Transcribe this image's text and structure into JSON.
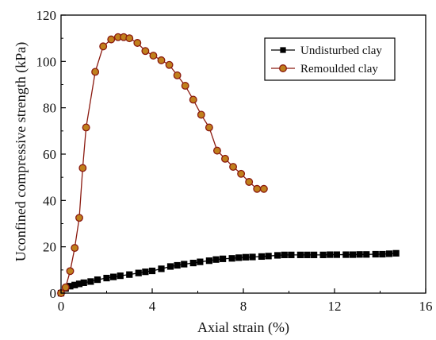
{
  "chart_data": {
    "type": "line",
    "xlabel": "Axial strain (%)",
    "ylabel": "Uconfined compressive strength (kPa)",
    "xlim": [
      0,
      16
    ],
    "ylim": [
      0,
      120
    ],
    "xticks": [
      0,
      4,
      8,
      12,
      16
    ],
    "yticks": [
      0,
      20,
      40,
      60,
      80,
      100,
      120
    ],
    "grid": false,
    "legend_position": "top-right",
    "series": [
      {
        "name": "Undisturbed clay",
        "marker": "square",
        "color": "#000000",
        "x": [
          0.0,
          0.2,
          0.4,
          0.6,
          0.8,
          1.0,
          1.3,
          1.6,
          2.0,
          2.3,
          2.6,
          3.0,
          3.4,
          3.7,
          4.0,
          4.4,
          4.8,
          5.1,
          5.4,
          5.8,
          6.1,
          6.5,
          6.8,
          7.1,
          7.5,
          7.8,
          8.1,
          8.4,
          8.8,
          9.1,
          9.5,
          9.8,
          10.1,
          10.5,
          10.8,
          11.1,
          11.5,
          11.8,
          12.1,
          12.5,
          12.8,
          13.1,
          13.4,
          13.8,
          14.1,
          14.4,
          14.7
        ],
        "y": [
          0,
          2.0,
          3.0,
          3.5,
          4.0,
          4.5,
          5.0,
          5.8,
          6.5,
          7.0,
          7.5,
          8.0,
          8.7,
          9.2,
          9.6,
          10.5,
          11.5,
          12.0,
          12.5,
          13.0,
          13.5,
          14.0,
          14.5,
          14.8,
          15.0,
          15.3,
          15.5,
          15.6,
          15.8,
          16.0,
          16.3,
          16.5,
          16.5,
          16.5,
          16.5,
          16.5,
          16.5,
          16.6,
          16.6,
          16.6,
          16.6,
          16.7,
          16.7,
          16.8,
          16.8,
          17.0,
          17.2
        ]
      },
      {
        "name": "Remoulded clay",
        "marker": "circle",
        "color": "#8b1a10",
        "x": [
          0.0,
          0.2,
          0.4,
          0.6,
          0.8,
          0.95,
          1.1,
          1.5,
          1.85,
          2.2,
          2.5,
          2.75,
          3.0,
          3.35,
          3.7,
          4.05,
          4.4,
          4.75,
          5.1,
          5.45,
          5.8,
          6.15,
          6.5,
          6.85,
          7.2,
          7.55,
          7.9,
          8.25,
          8.6,
          8.9
        ],
        "y": [
          0,
          2.5,
          9.5,
          19.5,
          32.5,
          54,
          71.5,
          95.5,
          106.5,
          109.5,
          110.5,
          110.5,
          110,
          108,
          104.5,
          102.5,
          100.5,
          98.5,
          94,
          89.5,
          83.5,
          77,
          71.5,
          61.5,
          58,
          54.5,
          51.5,
          48,
          45,
          45
        ]
      }
    ]
  }
}
